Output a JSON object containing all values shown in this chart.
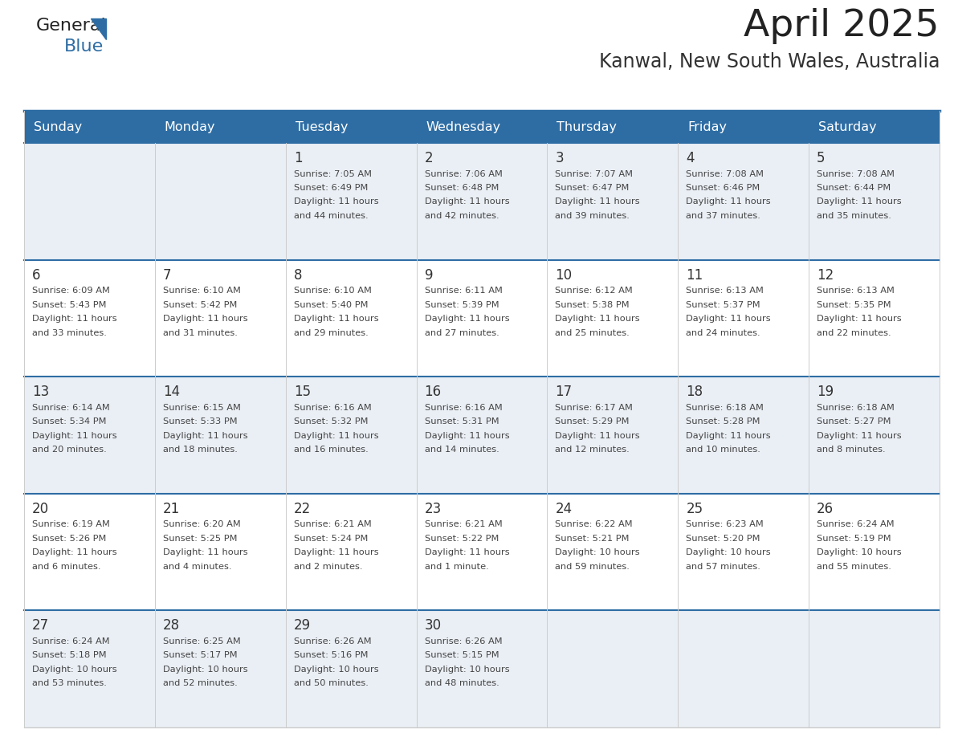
{
  "title": "April 2025",
  "subtitle": "Kanwal, New South Wales, Australia",
  "header_bg": "#2E6DA4",
  "header_text_color": "#FFFFFF",
  "cell_bg_odd": "#EAEFF5",
  "cell_bg_even": "#FFFFFF",
  "day_num_color": "#333333",
  "text_color": "#444444",
  "row_separator_color": "#2E6DA4",
  "col_separator_color": "#CCCCCC",
  "logo_text1_color": "#222222",
  "logo_text2_color": "#2E6DA4",
  "logo_triangle_color": "#2E6DA4",
  "days_of_week": [
    "Sunday",
    "Monday",
    "Tuesday",
    "Wednesday",
    "Thursday",
    "Friday",
    "Saturday"
  ],
  "calendar_data": [
    [
      {
        "day": null,
        "sunrise": null,
        "sunset": null,
        "daylight": null
      },
      {
        "day": null,
        "sunrise": null,
        "sunset": null,
        "daylight": null
      },
      {
        "day": 1,
        "sunrise": "7:05 AM",
        "sunset": "6:49 PM",
        "daylight": "11 hours\nand 44 minutes."
      },
      {
        "day": 2,
        "sunrise": "7:06 AM",
        "sunset": "6:48 PM",
        "daylight": "11 hours\nand 42 minutes."
      },
      {
        "day": 3,
        "sunrise": "7:07 AM",
        "sunset": "6:47 PM",
        "daylight": "11 hours\nand 39 minutes."
      },
      {
        "day": 4,
        "sunrise": "7:08 AM",
        "sunset": "6:46 PM",
        "daylight": "11 hours\nand 37 minutes."
      },
      {
        "day": 5,
        "sunrise": "7:08 AM",
        "sunset": "6:44 PM",
        "daylight": "11 hours\nand 35 minutes."
      }
    ],
    [
      {
        "day": 6,
        "sunrise": "6:09 AM",
        "sunset": "5:43 PM",
        "daylight": "11 hours\nand 33 minutes."
      },
      {
        "day": 7,
        "sunrise": "6:10 AM",
        "sunset": "5:42 PM",
        "daylight": "11 hours\nand 31 minutes."
      },
      {
        "day": 8,
        "sunrise": "6:10 AM",
        "sunset": "5:40 PM",
        "daylight": "11 hours\nand 29 minutes."
      },
      {
        "day": 9,
        "sunrise": "6:11 AM",
        "sunset": "5:39 PM",
        "daylight": "11 hours\nand 27 minutes."
      },
      {
        "day": 10,
        "sunrise": "6:12 AM",
        "sunset": "5:38 PM",
        "daylight": "11 hours\nand 25 minutes."
      },
      {
        "day": 11,
        "sunrise": "6:13 AM",
        "sunset": "5:37 PM",
        "daylight": "11 hours\nand 24 minutes."
      },
      {
        "day": 12,
        "sunrise": "6:13 AM",
        "sunset": "5:35 PM",
        "daylight": "11 hours\nand 22 minutes."
      }
    ],
    [
      {
        "day": 13,
        "sunrise": "6:14 AM",
        "sunset": "5:34 PM",
        "daylight": "11 hours\nand 20 minutes."
      },
      {
        "day": 14,
        "sunrise": "6:15 AM",
        "sunset": "5:33 PM",
        "daylight": "11 hours\nand 18 minutes."
      },
      {
        "day": 15,
        "sunrise": "6:16 AM",
        "sunset": "5:32 PM",
        "daylight": "11 hours\nand 16 minutes."
      },
      {
        "day": 16,
        "sunrise": "6:16 AM",
        "sunset": "5:31 PM",
        "daylight": "11 hours\nand 14 minutes."
      },
      {
        "day": 17,
        "sunrise": "6:17 AM",
        "sunset": "5:29 PM",
        "daylight": "11 hours\nand 12 minutes."
      },
      {
        "day": 18,
        "sunrise": "6:18 AM",
        "sunset": "5:28 PM",
        "daylight": "11 hours\nand 10 minutes."
      },
      {
        "day": 19,
        "sunrise": "6:18 AM",
        "sunset": "5:27 PM",
        "daylight": "11 hours\nand 8 minutes."
      }
    ],
    [
      {
        "day": 20,
        "sunrise": "6:19 AM",
        "sunset": "5:26 PM",
        "daylight": "11 hours\nand 6 minutes."
      },
      {
        "day": 21,
        "sunrise": "6:20 AM",
        "sunset": "5:25 PM",
        "daylight": "11 hours\nand 4 minutes."
      },
      {
        "day": 22,
        "sunrise": "6:21 AM",
        "sunset": "5:24 PM",
        "daylight": "11 hours\nand 2 minutes."
      },
      {
        "day": 23,
        "sunrise": "6:21 AM",
        "sunset": "5:22 PM",
        "daylight": "11 hours\nand 1 minute."
      },
      {
        "day": 24,
        "sunrise": "6:22 AM",
        "sunset": "5:21 PM",
        "daylight": "10 hours\nand 59 minutes."
      },
      {
        "day": 25,
        "sunrise": "6:23 AM",
        "sunset": "5:20 PM",
        "daylight": "10 hours\nand 57 minutes."
      },
      {
        "day": 26,
        "sunrise": "6:24 AM",
        "sunset": "5:19 PM",
        "daylight": "10 hours\nand 55 minutes."
      }
    ],
    [
      {
        "day": 27,
        "sunrise": "6:24 AM",
        "sunset": "5:18 PM",
        "daylight": "10 hours\nand 53 minutes."
      },
      {
        "day": 28,
        "sunrise": "6:25 AM",
        "sunset": "5:17 PM",
        "daylight": "10 hours\nand 52 minutes."
      },
      {
        "day": 29,
        "sunrise": "6:26 AM",
        "sunset": "5:16 PM",
        "daylight": "10 hours\nand 50 minutes."
      },
      {
        "day": 30,
        "sunrise": "6:26 AM",
        "sunset": "5:15 PM",
        "daylight": "10 hours\nand 48 minutes."
      },
      {
        "day": null,
        "sunrise": null,
        "sunset": null,
        "daylight": null
      },
      {
        "day": null,
        "sunrise": null,
        "sunset": null,
        "daylight": null
      },
      {
        "day": null,
        "sunrise": null,
        "sunset": null,
        "daylight": null
      }
    ]
  ]
}
